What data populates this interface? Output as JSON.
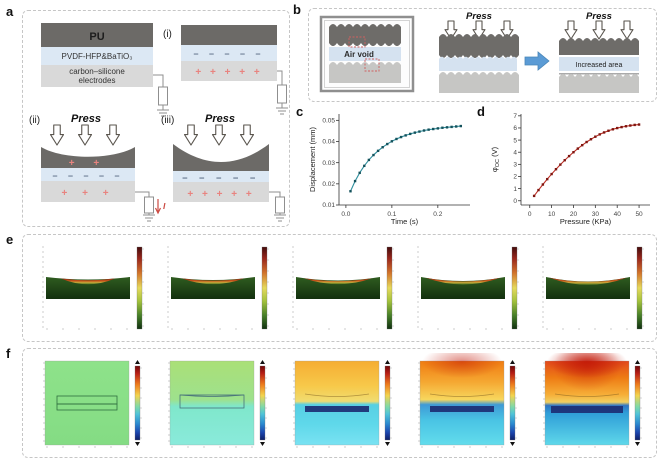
{
  "figure": {
    "panel_labels": {
      "a": "a",
      "b": "b",
      "c": "c",
      "d": "d",
      "e": "e",
      "f": "f"
    }
  },
  "panel_a": {
    "layers": {
      "top": "PU",
      "middle": "PVDF-HFP&BaTiO₃",
      "bottom_line1": "carbon–silicone",
      "bottom_line2": "electrodes"
    },
    "state_i": "(i)",
    "state_ii": "(ii)",
    "state_iii": "(iii)",
    "press_label": "Press",
    "current_label": "I",
    "charges": {
      "i_minus": "– – – – –",
      "i_plus": "+ + + + +",
      "ii_plus_top": "+ +",
      "ii_minus": "– – – – –",
      "ii_plus_bottom": "+ + +",
      "iii_minus": "– – – – –",
      "iii_plus": "+ + + + +"
    }
  },
  "panel_b": {
    "press_label_mid": "Press",
    "press_label_right": "Press",
    "air_void_label": "Air void",
    "increased_area_label": "Increased area"
  },
  "chart_data": [
    {
      "id": "c",
      "type": "line",
      "xlabel": "Time (s)",
      "ylabel": "Displacement (mm)",
      "ylabel_sub": "",
      "ylabel_unit": "",
      "line_color": "#2e8f9e",
      "marker_color": "#14525c",
      "marker": "square",
      "x": [
        0.01,
        0.02,
        0.03,
        0.04,
        0.05,
        0.06,
        0.07,
        0.08,
        0.09,
        0.1,
        0.11,
        0.12,
        0.13,
        0.14,
        0.15,
        0.16,
        0.17,
        0.18,
        0.19,
        0.2,
        0.21,
        0.22,
        0.23,
        0.24,
        0.25
      ],
      "y": [
        0.0165,
        0.0213,
        0.0252,
        0.0285,
        0.0313,
        0.0336,
        0.0356,
        0.0373,
        0.0388,
        0.0401,
        0.0412,
        0.0421,
        0.0429,
        0.0436,
        0.0442,
        0.0447,
        0.0452,
        0.0456,
        0.0459,
        0.0462,
        0.0465,
        0.0467,
        0.0469,
        0.0471,
        0.0473
      ],
      "xlim": [
        -0.015,
        0.27
      ],
      "ylim": [
        0.01,
        0.053
      ],
      "xtick_values": [
        0.0,
        0.1,
        0.2
      ],
      "xtick_labels": [
        "0.0",
        "0.1",
        "0.2"
      ],
      "ytick_values": [
        0.01,
        0.02,
        0.03,
        0.04,
        0.05
      ],
      "ytick_labels": [
        "0.01",
        "0.02",
        "0.03",
        "0.04",
        "0.05"
      ],
      "grid": false,
      "legend": null
    },
    {
      "id": "d",
      "type": "line",
      "xlabel": "Pressure (KPa)",
      "ylabel": "φ",
      "ylabel_sub": "OC",
      "ylabel_unit": " (V)",
      "line_color": "#bf3026",
      "marker_color": "#7e150f",
      "marker": "square",
      "x": [
        2,
        4,
        6,
        8,
        10,
        12,
        14,
        16,
        18,
        20,
        22,
        24,
        26,
        28,
        30,
        32,
        34,
        36,
        38,
        40,
        42,
        44,
        46,
        48,
        50
      ],
      "y": [
        0.4,
        0.88,
        1.34,
        1.78,
        2.2,
        2.6,
        2.98,
        3.34,
        3.68,
        4.0,
        4.3,
        4.58,
        4.84,
        5.07,
        5.28,
        5.47,
        5.63,
        5.77,
        5.89,
        5.99,
        6.07,
        6.14,
        6.2,
        6.25,
        6.28
      ],
      "xlim": [
        -4,
        55
      ],
      "ylim": [
        -0.35,
        7.15
      ],
      "xtick_values": [
        0,
        10,
        20,
        30,
        40,
        50
      ],
      "xtick_labels": [
        "0",
        "10",
        "20",
        "30",
        "40",
        "50"
      ],
      "ytick_values": [
        0,
        1,
        2,
        3,
        4,
        5,
        6,
        7
      ],
      "ytick_labels": [
        "0",
        "1",
        "2",
        "3",
        "4",
        "5",
        "6",
        "7"
      ],
      "grid": false,
      "legend": null
    }
  ],
  "colors": {
    "layer_dark": "#6c6a67",
    "layer_blue": "#dce8f4",
    "layer_gray": "#d9d9d9",
    "charge_plus": "#e8837f",
    "charge_minus": "#5a6b85",
    "arrow_blue": "#5b9bd5",
    "accent_teal": "#2e8f9e",
    "accent_red": "#bf3026",
    "dashed_border": "#c6c6c6"
  }
}
